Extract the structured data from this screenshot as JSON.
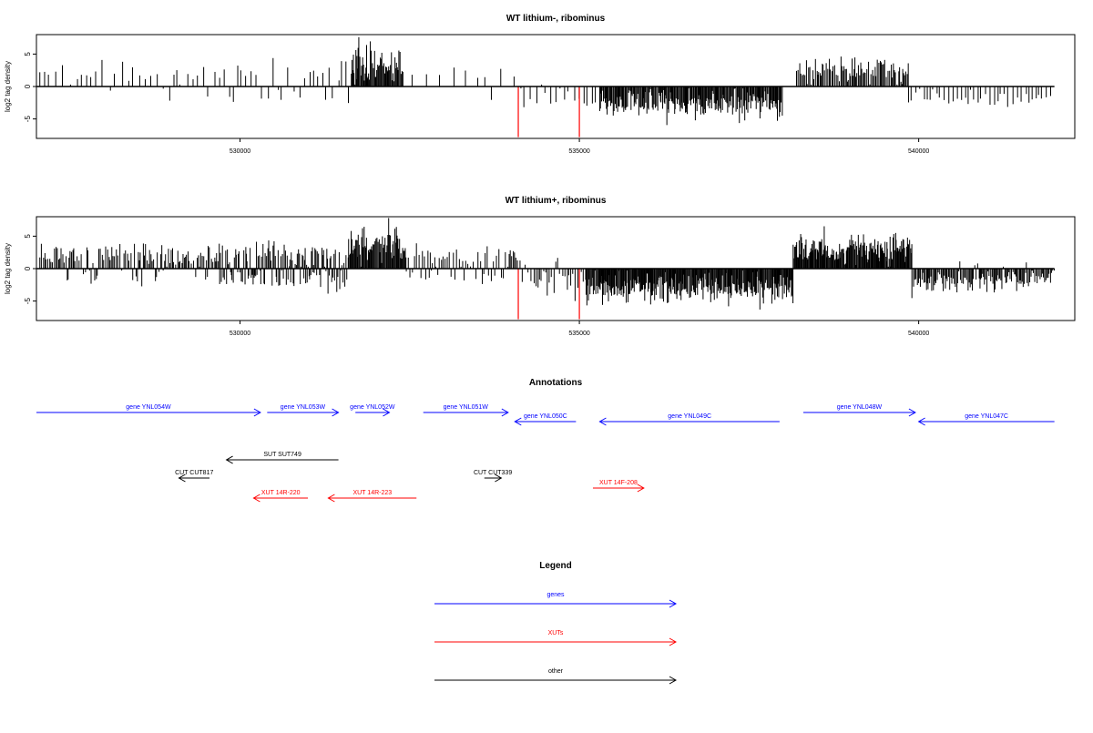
{
  "colors": {
    "gene": "#0000ff",
    "xut": "#ff0000",
    "other": "#000000",
    "bar": "#000000",
    "highlight": "#ff0000"
  },
  "chart_data": [
    {
      "type": "bar",
      "title": "WT lithium-, ribominus",
      "ylabel": "log2 tag density",
      "xlim": [
        527000,
        542300
      ],
      "ylim": [
        -8,
        8
      ],
      "x_ticks": [
        530000,
        535000,
        540000
      ],
      "x_tick_labels": [
        "530000",
        "535000",
        "540000"
      ],
      "y_ticks": [
        -5,
        0,
        5
      ],
      "y_tick_labels": [
        "-5",
        "0",
        "5"
      ],
      "baseline_range": [
        527000,
        542000
      ],
      "grid": false,
      "highlight_bars": [
        {
          "x": 534100,
          "y": -7.8,
          "color": "#ff0000"
        },
        {
          "x": 535000,
          "y": -7.8,
          "color": "#ff0000"
        }
      ],
      "segments": [
        {
          "start": 527050,
          "end": 527800,
          "density": 0.12,
          "pos_mean": 2.2,
          "pos_sd": 0.9,
          "neg_mean": 1.5,
          "neg_sd": 0.7,
          "pos_frac": 0.9
        },
        {
          "start": 527800,
          "end": 529700,
          "density": 0.12,
          "pos_mean": 2.0,
          "pos_sd": 0.9,
          "neg_mean": 1.6,
          "neg_sd": 0.8,
          "pos_frac": 0.75
        },
        {
          "start": 529700,
          "end": 531650,
          "density": 0.14,
          "pos_mean": 2.3,
          "pos_sd": 1.0,
          "neg_mean": 1.6,
          "neg_sd": 0.7,
          "pos_frac": 0.78
        },
        {
          "start": 531650,
          "end": 532400,
          "density": 0.85,
          "pos_mean": 3.0,
          "pos_sd": 1.4,
          "neg_mean": 1.0,
          "neg_sd": 0.5,
          "pos_frac": 1.0
        },
        {
          "start": 532400,
          "end": 534100,
          "density": 0.07,
          "pos_mean": 1.8,
          "pos_sd": 0.8,
          "neg_mean": 1.2,
          "neg_sd": 0.6,
          "pos_frac": 0.9
        },
        {
          "start": 534100,
          "end": 535300,
          "density": 0.14,
          "pos_mean": 1.0,
          "pos_sd": 0.6,
          "neg_mean": 1.9,
          "neg_sd": 1.0,
          "pos_frac": 0.05
        },
        {
          "start": 535300,
          "end": 538000,
          "density": 0.8,
          "pos_mean": 1.0,
          "pos_sd": 0.5,
          "neg_mean": 2.6,
          "neg_sd": 1.1,
          "pos_frac": 0.0
        },
        {
          "start": 538200,
          "end": 539850,
          "density": 0.55,
          "pos_mean": 2.5,
          "pos_sd": 1.0,
          "neg_mean": 1.0,
          "neg_sd": 0.5,
          "pos_frac": 1.0
        },
        {
          "start": 539850,
          "end": 542000,
          "density": 0.18,
          "pos_mean": 1.0,
          "pos_sd": 0.5,
          "neg_mean": 1.9,
          "neg_sd": 0.7,
          "pos_frac": 0.0
        }
      ]
    },
    {
      "type": "bar",
      "title": "WT lithium+, ribominus",
      "ylabel": "log2 tag density",
      "xlim": [
        527000,
        542300
      ],
      "ylim": [
        -8,
        8
      ],
      "x_ticks": [
        530000,
        535000,
        540000
      ],
      "x_tick_labels": [
        "530000",
        "535000",
        "540000"
      ],
      "y_ticks": [
        -5,
        0,
        5
      ],
      "y_tick_labels": [
        "-5",
        "0",
        "5"
      ],
      "baseline_range": [
        527000,
        542000
      ],
      "grid": false,
      "highlight_bars": [
        {
          "x": 534100,
          "y": -7.8,
          "color": "#ff0000"
        },
        {
          "x": 535000,
          "y": -7.8,
          "color": "#ff0000"
        }
      ],
      "segments": [
        {
          "start": 527050,
          "end": 529700,
          "density": 0.45,
          "pos_mean": 2.1,
          "pos_sd": 1.0,
          "neg_mean": 1.5,
          "neg_sd": 0.8,
          "pos_frac": 0.9
        },
        {
          "start": 529700,
          "end": 531600,
          "density": 0.7,
          "pos_mean": 2.2,
          "pos_sd": 1.1,
          "neg_mean": 1.6,
          "neg_sd": 0.8,
          "pos_frac": 0.62
        },
        {
          "start": 531600,
          "end": 532450,
          "density": 0.9,
          "pos_mean": 3.4,
          "pos_sd": 1.5,
          "neg_mean": 1.2,
          "neg_sd": 0.6,
          "pos_frac": 1.0
        },
        {
          "start": 532450,
          "end": 534100,
          "density": 0.35,
          "pos_mean": 1.8,
          "pos_sd": 0.9,
          "neg_mean": 1.3,
          "neg_sd": 0.6,
          "pos_frac": 0.8
        },
        {
          "start": 534100,
          "end": 535100,
          "density": 0.3,
          "pos_mean": 0.9,
          "pos_sd": 0.5,
          "neg_mean": 2.0,
          "neg_sd": 1.1,
          "pos_frac": 0.05
        },
        {
          "start": 535100,
          "end": 538150,
          "density": 0.95,
          "pos_mean": 0.8,
          "pos_sd": 0.4,
          "neg_mean": 3.0,
          "neg_sd": 1.2,
          "pos_frac": 0.0
        },
        {
          "start": 538150,
          "end": 539900,
          "density": 0.95,
          "pos_mean": 3.0,
          "pos_sd": 1.2,
          "neg_mean": 0.8,
          "neg_sd": 0.4,
          "pos_frac": 1.0
        },
        {
          "start": 539900,
          "end": 542000,
          "density": 0.6,
          "pos_mean": 0.9,
          "pos_sd": 0.5,
          "neg_mean": 2.0,
          "neg_sd": 0.9,
          "pos_frac": 0.06
        }
      ]
    }
  ],
  "annotations": {
    "title": "Annotations",
    "features": [
      {
        "label": "gene YNL054W",
        "start": 527000,
        "end": 530300,
        "strand": "+",
        "kind": "gene",
        "row": 0
      },
      {
        "label": "gene YNL053W",
        "start": 530400,
        "end": 531450,
        "strand": "+",
        "kind": "gene",
        "row": 0
      },
      {
        "label": "gene YNL052W",
        "start": 531700,
        "end": 532200,
        "strand": "+",
        "kind": "gene",
        "row": 0
      },
      {
        "label": "gene YNL051W",
        "start": 532700,
        "end": 533950,
        "strand": "+",
        "kind": "gene",
        "row": 0
      },
      {
        "label": "gene YNL050C",
        "start": 534050,
        "end": 534950,
        "strand": "-",
        "kind": "gene",
        "row": 1
      },
      {
        "label": "gene YNL049C",
        "start": 535300,
        "end": 537950,
        "strand": "-",
        "kind": "gene",
        "row": 1
      },
      {
        "label": "gene YNL048W",
        "start": 538300,
        "end": 539950,
        "strand": "+",
        "kind": "gene",
        "row": 0
      },
      {
        "label": "gene YNL047C",
        "start": 540000,
        "end": 542000,
        "strand": "-",
        "kind": "gene",
        "row": 1
      },
      {
        "label": "SUT SUT749",
        "start": 529800,
        "end": 531450,
        "strand": "-",
        "kind": "other",
        "row": 2
      },
      {
        "label": "CUT CUT817",
        "start": 529100,
        "end": 529550,
        "strand": "-",
        "kind": "other",
        "row": 3
      },
      {
        "label": "CUT CUT339",
        "start": 533600,
        "end": 533850,
        "strand": "+",
        "kind": "other",
        "row": 3
      },
      {
        "label": "XUT 14F-208",
        "start": 535200,
        "end": 535950,
        "strand": "+",
        "kind": "xut",
        "row": 4
      },
      {
        "label": "XUT 14R-220",
        "start": 530200,
        "end": 531000,
        "strand": "-",
        "kind": "xut",
        "row": 5
      },
      {
        "label": "XUT 14R-223",
        "start": 531300,
        "end": 532600,
        "strand": "-",
        "kind": "xut",
        "row": 5
      }
    ]
  },
  "legend": {
    "title": "Legend",
    "items": [
      {
        "label": "genes",
        "kind": "gene"
      },
      {
        "label": "XUTs",
        "kind": "xut"
      },
      {
        "label": "other",
        "kind": "other"
      }
    ]
  }
}
